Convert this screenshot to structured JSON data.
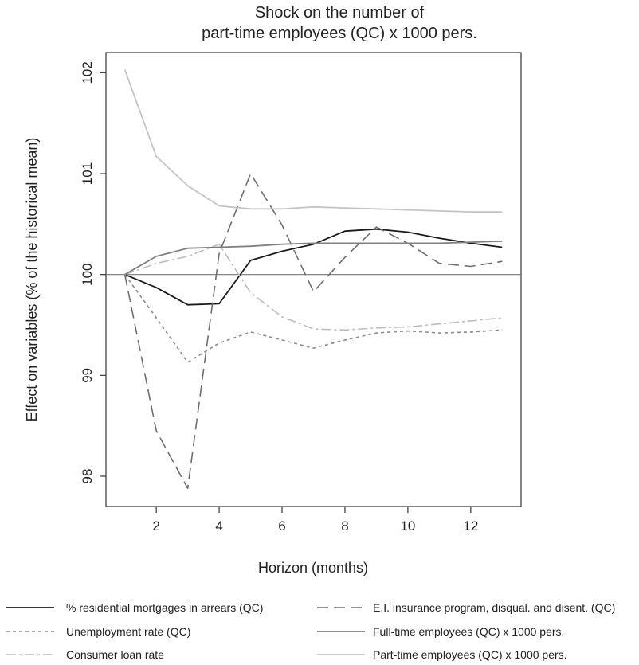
{
  "chart_data": {
    "type": "line",
    "title_lines": [
      "Shock on the number of",
      "part-time employees (QC) x 1000 pers."
    ],
    "xlabel": "Horizon (months)",
    "ylabel": "Effect on variables (% of the historical mean)",
    "xlim": [
      0.4,
      13.6
    ],
    "ylim": [
      97.7,
      102.2
    ],
    "xticks": [
      2,
      4,
      6,
      8,
      10,
      12
    ],
    "yticks": [
      98,
      99,
      100,
      101,
      102
    ],
    "reference_line": 100,
    "grid": false,
    "legend_position": "bottom",
    "x": [
      1,
      2,
      3,
      4,
      5,
      6,
      7,
      8,
      9,
      10,
      11,
      12,
      13
    ],
    "series": [
      {
        "name": "% residential mortgages in arrears (QC)",
        "color": "#1a1a1a",
        "dash": "",
        "width": 1.8,
        "values": [
          100.0,
          99.87,
          99.7,
          99.71,
          100.14,
          100.23,
          100.3,
          100.43,
          100.45,
          100.42,
          100.36,
          100.31,
          100.27
        ]
      },
      {
        "name": "Unemployment rate (QC)",
        "color": "#8a8a8a",
        "dash": "4,4",
        "width": 1.6,
        "values": [
          100.0,
          99.57,
          99.13,
          99.32,
          99.43,
          99.35,
          99.27,
          99.35,
          99.42,
          99.44,
          99.42,
          99.43,
          99.45
        ]
      },
      {
        "name": "Consumer loan rate",
        "color": "#bdbdbd",
        "dash": "12,4,3,4",
        "width": 1.6,
        "values": [
          100.0,
          100.11,
          100.18,
          100.3,
          99.82,
          99.58,
          99.46,
          99.45,
          99.47,
          99.48,
          99.51,
          99.54,
          99.57
        ]
      },
      {
        "name": "E.I. insurance program, disqual. and disent. (QC)",
        "color": "#6f6f6f",
        "dash": "14,7",
        "width": 1.6,
        "values": [
          100.0,
          98.45,
          97.88,
          100.21,
          101.0,
          100.49,
          99.83,
          100.17,
          100.47,
          100.31,
          100.11,
          100.08,
          100.13
        ]
      },
      {
        "name": "Full-time employees (QC) x 1000 pers.",
        "color": "#808080",
        "dash": "",
        "width": 1.8,
        "values": [
          100.0,
          100.18,
          100.26,
          100.27,
          100.28,
          100.3,
          100.31,
          100.31,
          100.31,
          100.31,
          100.31,
          100.32,
          100.33
        ]
      },
      {
        "name": "Part-time employees (QC) x 1000 pers.",
        "color": "#c4c4c4",
        "dash": "",
        "width": 1.8,
        "values": [
          102.03,
          101.17,
          100.88,
          100.68,
          100.65,
          100.65,
          100.67,
          100.66,
          100.65,
          100.64,
          100.63,
          100.62,
          100.62
        ]
      }
    ]
  }
}
